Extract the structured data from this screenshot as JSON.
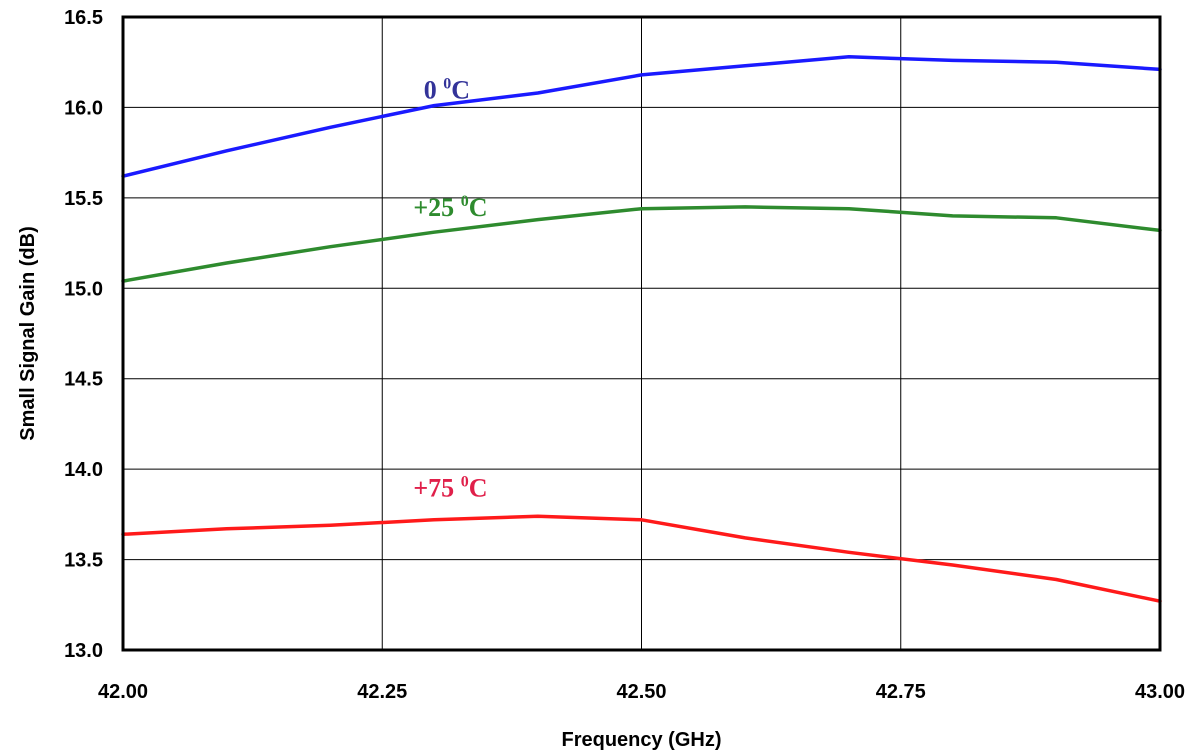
{
  "chart_data": {
    "type": "line",
    "title": "",
    "xlabel": "Frequency (GHz)",
    "ylabel": "Small Signal Gain (dB)",
    "xlim": [
      42.0,
      43.0
    ],
    "ylim": [
      13.0,
      16.5
    ],
    "x_ticks": [
      42.0,
      42.25,
      42.5,
      42.75,
      43.0
    ],
    "x_tick_labels": [
      "42.00",
      "42.25",
      "42.50",
      "42.75",
      "43.00"
    ],
    "y_ticks": [
      13.0,
      13.5,
      14.0,
      14.5,
      15.0,
      15.5,
      16.0,
      16.5
    ],
    "y_tick_labels": [
      "13.0",
      "13.5",
      "14.0",
      "14.5",
      "15.0",
      "15.5",
      "16.0",
      "16.5"
    ],
    "grid": true,
    "x": [
      42.0,
      42.1,
      42.2,
      42.3,
      42.4,
      42.5,
      42.6,
      42.7,
      42.8,
      42.9,
      43.0
    ],
    "series": [
      {
        "name": "0 0C",
        "label_main": "0 ",
        "label_sup": "0",
        "label_unit": "C",
        "color": "#1a1aff",
        "label_color": "#333399",
        "values": [
          15.62,
          15.76,
          15.89,
          16.01,
          16.08,
          16.18,
          16.23,
          16.28,
          16.26,
          16.25,
          16.21
        ]
      },
      {
        "name": "+25 0C",
        "label_main": "+25 ",
        "label_sup": "0",
        "label_unit": "C",
        "color": "#2e8b2e",
        "label_color": "#2e8b2e",
        "values": [
          15.04,
          15.14,
          15.23,
          15.31,
          15.38,
          15.44,
          15.45,
          15.44,
          15.4,
          15.39,
          15.32
        ]
      },
      {
        "name": "+75 0C",
        "label_main": "+75 ",
        "label_sup": "0",
        "label_unit": "C",
        "color": "#ff1a1a",
        "label_color": "#e0204a",
        "values": [
          13.64,
          13.67,
          13.69,
          13.72,
          13.74,
          13.72,
          13.62,
          13.54,
          13.47,
          13.39,
          13.27
        ]
      }
    ]
  }
}
